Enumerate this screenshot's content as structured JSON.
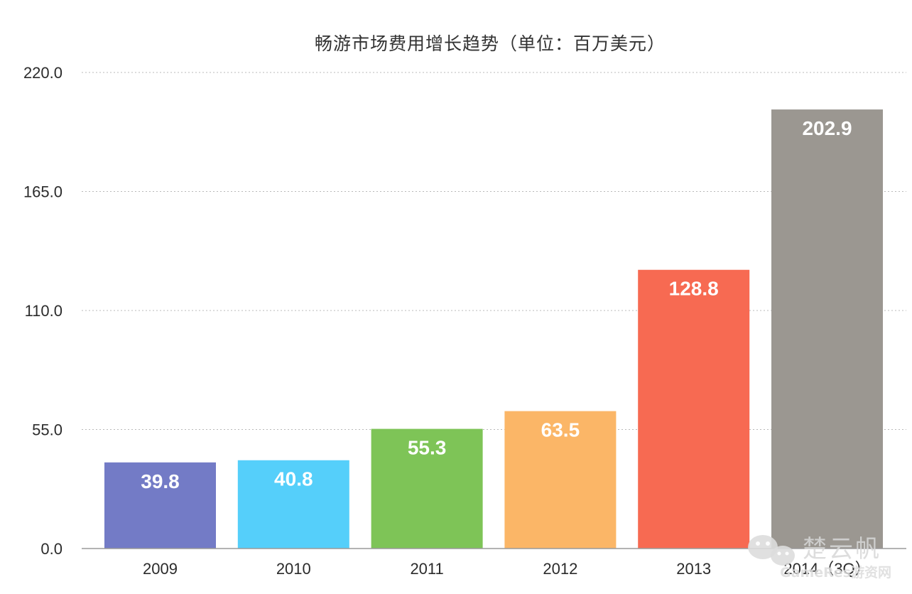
{
  "chart_data": {
    "type": "bar",
    "title": "畅游市场费用增长趋势（单位：百万美元）",
    "xlabel": "",
    "ylabel": "",
    "categories": [
      "2009",
      "2010",
      "2011",
      "2012",
      "2013",
      "2014（3Q）"
    ],
    "values": [
      39.8,
      40.8,
      55.3,
      63.5,
      128.8,
      202.9
    ],
    "value_labels": [
      "39.8",
      "40.8",
      "55.3",
      "63.5",
      "128.8",
      "202.9"
    ],
    "bar_colors": [
      "#737bc6",
      "#55cffa",
      "#7ec457",
      "#fbb667",
      "#f76a52",
      "#9b9791"
    ],
    "ylim": [
      0,
      220
    ],
    "yticks": [
      0,
      55,
      110,
      165,
      220
    ],
    "ytick_labels": [
      "0.0",
      "55.0",
      "110.0",
      "165.0",
      "220.0"
    ],
    "grid": true,
    "gridline_color": "#b8b8b8"
  },
  "watermark": {
    "icon": "wechat-icon",
    "text": "楚云帆",
    "subtext": "GameRes游资网"
  }
}
